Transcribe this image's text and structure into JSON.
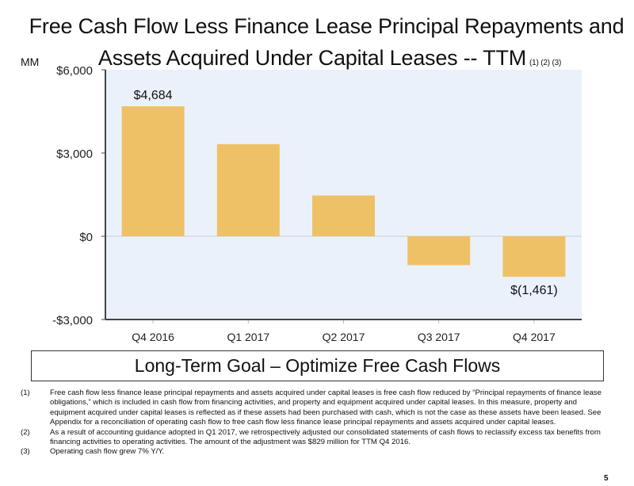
{
  "title": {
    "line1": "Free Cash Flow Less Finance Lease Principal Repayments and",
    "line2": "Assets Acquired Under Capital Leases -- TTM",
    "notes": "(1) (2) (3)"
  },
  "unit_label": "MM",
  "chart_data": {
    "type": "bar",
    "title": "Free Cash Flow Less Finance Lease Principal Repayments and Assets Acquired Under Capital Leases -- TTM",
    "xlabel": "",
    "ylabel": "MM",
    "categories": [
      "Q4 2016",
      "Q1 2017",
      "Q2 2017",
      "Q3 2017",
      "Q4 2017"
    ],
    "values": [
      4684,
      3320,
      1470,
      -1040,
      -1461
    ],
    "data_labels": [
      "$4,684",
      "",
      "",
      "",
      "$(1,461)"
    ],
    "ylim": [
      -3000,
      6000
    ],
    "yticks": [
      -3000,
      0,
      3000,
      6000
    ],
    "ytick_labels": [
      "-$3,000",
      "$0",
      "$3,000",
      "$6,000"
    ],
    "grid": false,
    "legend": "none",
    "colors": {
      "bar": "#EFC166",
      "plot_bg": "#EAF1FB",
      "axis": "#444444",
      "zero_line": "#C8D0DC"
    }
  },
  "goal_box": "Long-Term Goal – Optimize Free Cash Flows",
  "footnotes": [
    {
      "num": "(1)",
      "text": "Free cash flow less finance lease principal repayments and assets acquired under capital leases is free cash flow reduced by “Principal repayments of finance lease obligations,” which is included in cash flow from financing activities, and property and equipment acquired under capital leases. In this measure, property and equipment acquired under capital leases is reflected as if these assets had been purchased with cash, which is not the case as these assets have been leased. See Appendix for a reconciliation of operating cash flow to free cash flow less finance lease principal repayments and assets acquired under capital leases."
    },
    {
      "num": "(2)",
      "text": "As a result of accounting guidance adopted in Q1 2017, we retrospectively adjusted our consolidated statements of cash flows to reclassify excess tax benefits from financing activities to operating activities. The amount of the adjustment was $829 million for TTM Q4 2016."
    },
    {
      "num": "(3)",
      "text": "Operating cash flow grew 7% Y/Y."
    }
  ],
  "page_number": "5"
}
